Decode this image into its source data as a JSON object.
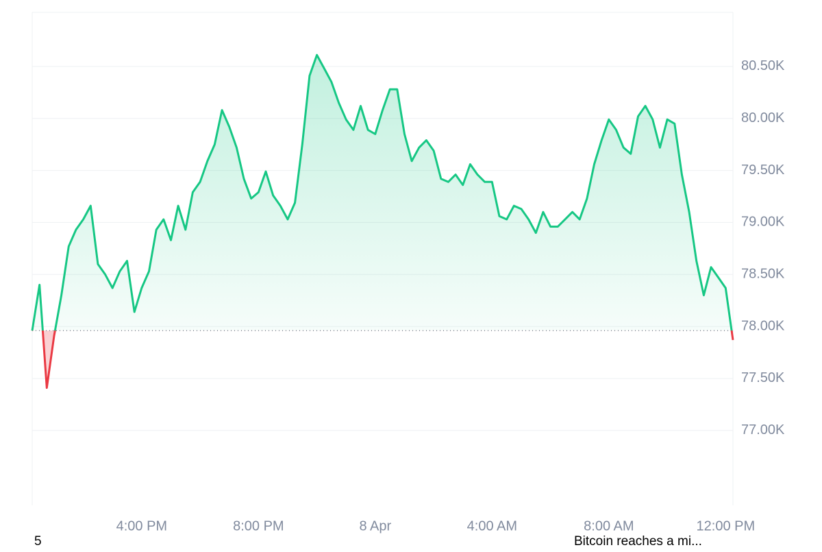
{
  "chart_data": {
    "type": "line",
    "categories": [
      null,
      null,
      null,
      null,
      null,
      null,
      null,
      null,
      null,
      null,
      null,
      null,
      null,
      null,
      null,
      "4:00 PM",
      null,
      null,
      null,
      null,
      null,
      null,
      null,
      null,
      null,
      null,
      null,
      null,
      null,
      null,
      null,
      "8:00 PM",
      null,
      null,
      null,
      null,
      null,
      null,
      null,
      null,
      null,
      null,
      null,
      null,
      null,
      null,
      null,
      "8 Apr",
      null,
      null,
      null,
      null,
      null,
      null,
      null,
      null,
      null,
      null,
      null,
      null,
      null,
      null,
      null,
      "4:00 AM",
      null,
      null,
      null,
      null,
      null,
      null,
      null,
      null,
      null,
      null,
      null,
      null,
      null,
      null,
      null,
      "8:00 AM",
      null,
      null,
      null,
      null,
      null,
      null,
      null,
      null,
      null,
      null,
      null,
      null,
      null,
      null,
      null,
      "12:00 PM",
      null
    ],
    "series": [
      {
        "color": "#16c784",
        "below_color": "#ea3943",
        "values": [
          77960,
          78400,
          77410,
          77910,
          78300,
          78770,
          78930,
          79030,
          79160,
          78600,
          78500,
          78370,
          78530,
          78630,
          78140,
          78370,
          78530,
          78930,
          79030,
          78830,
          79160,
          78930,
          79290,
          79390,
          79590,
          79750,
          80080,
          79920,
          79720,
          79420,
          79230,
          79290,
          79490,
          79260,
          79160,
          79030,
          79190,
          79750,
          80410,
          80610,
          80480,
          80350,
          80150,
          79990,
          79890,
          80120,
          79890,
          79850,
          80080,
          80280,
          80280,
          79850,
          79590,
          79720,
          79790,
          79690,
          79420,
          79390,
          79460,
          79360,
          79560,
          79460,
          79390,
          79390,
          79060,
          79030,
          79160,
          79130,
          79030,
          78900,
          79100,
          78960,
          78960,
          79030,
          79100,
          79030,
          79230,
          79560,
          79790,
          79990,
          79890,
          79720,
          79660,
          80020,
          80120,
          79990,
          79720,
          79990,
          79950,
          79460,
          79100,
          78630,
          78300,
          78570,
          78470,
          78370,
          77870
        ]
      }
    ],
    "baseline": 77960,
    "ylim": [
      76280,
      81020
    ],
    "yticks": [
      {
        "value": 77000,
        "label": "77.00K"
      },
      {
        "value": 77500,
        "label": "77.50K"
      },
      {
        "value": 78000,
        "label": "78.00K"
      },
      {
        "value": 78500,
        "label": "78.50K"
      },
      {
        "value": 79000,
        "label": "79.00K"
      },
      {
        "value": 79500,
        "label": "79.50K"
      },
      {
        "value": 80000,
        "label": "80.00K"
      },
      {
        "value": 80500,
        "label": "80.50K"
      }
    ],
    "grid": true
  },
  "footer": {
    "left": "5",
    "right": "Bitcoin reaches a mi..."
  }
}
